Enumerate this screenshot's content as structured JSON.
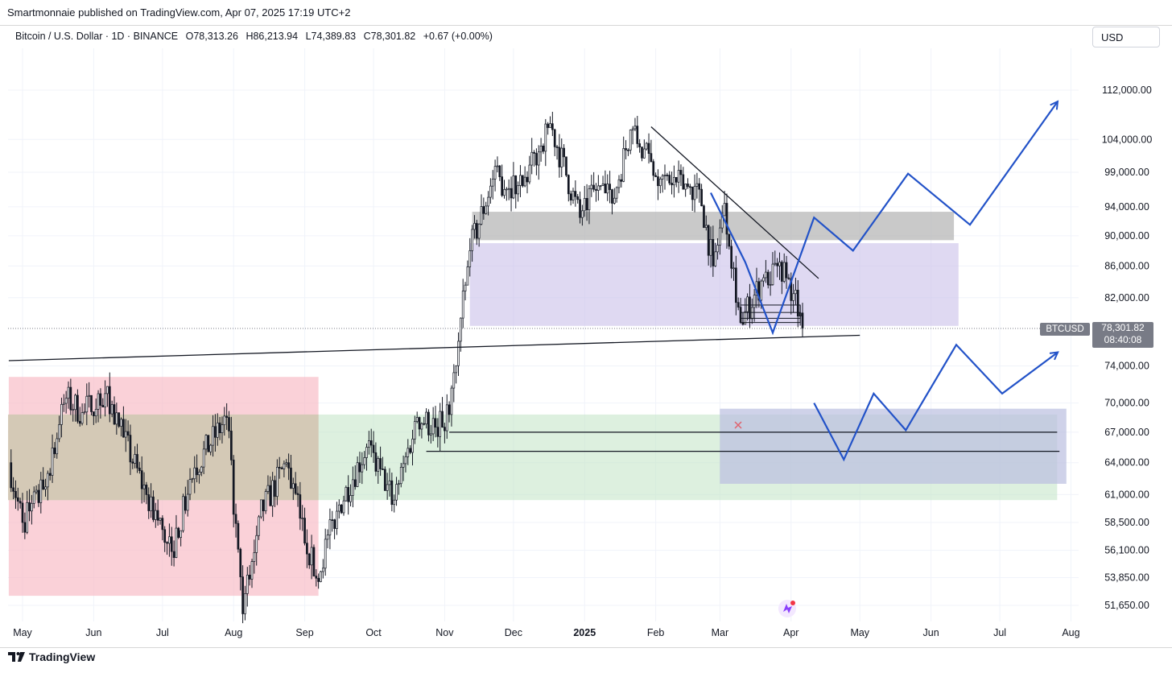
{
  "header": {
    "published": "Smartmonnaie published on TradingView.com, Apr 07, 2025 17:19 UTC+2",
    "title": "Bitcoin / U.S. Dollar · 1D · BINANCE",
    "open": "O78,313.26",
    "high": "H86,213.94",
    "low": "L74,389.83",
    "close": "C78,301.82",
    "change": "+0.67 (+0.00%)",
    "currency": "USD"
  },
  "price_label": {
    "symbol": "BTCUSD",
    "price": "78,301.82",
    "countdown": "08:40:08"
  },
  "footer": {
    "brand": "TradingView"
  },
  "colors": {
    "candle": "#131722",
    "projection": "#2252c8",
    "zone_gray": "#b2b2b2",
    "zone_purple": "#c9bfea",
    "zone_red": "#f8b9c3",
    "zone_green": "#c7e6c9",
    "zone_tan": "#d3c6b2",
    "zone_slate": "#aebfd6"
  },
  "chart_data": {
    "type": "candlestick",
    "scale": "log",
    "y_ticks": [
      112000,
      104000,
      99000,
      94000,
      90000,
      86000,
      82000,
      74000,
      70000,
      67000,
      64000,
      61000,
      58500,
      56100,
      53850,
      51650
    ],
    "y_tick_labels": [
      "112,000.00",
      "104,000.00",
      "99,000.00",
      "94,000.00",
      "90,000.00",
      "86,000.00",
      "82,000.00",
      "74,000.00",
      "70,000.00",
      "67,000.00",
      "64,000.00",
      "61,000.00",
      "58,500.00",
      "56,100.00",
      "53,850.00",
      "51,650.00"
    ],
    "x_labels": [
      "May",
      "Jun",
      "Jul",
      "Aug",
      "Sep",
      "Oct",
      "Nov",
      "Dec",
      "2025",
      "Feb",
      "Mar",
      "Apr",
      "May",
      "Jun",
      "Jul",
      "Aug"
    ],
    "x_label_dates": [
      "2024-05-01",
      "2024-06-01",
      "2024-07-01",
      "2024-08-01",
      "2024-09-01",
      "2024-10-01",
      "2024-11-01",
      "2024-12-01",
      "2025-01-01",
      "2025-02-01",
      "2025-03-01",
      "2025-04-01",
      "2025-05-01",
      "2025-06-01",
      "2025-07-01",
      "2025-08-01"
    ],
    "close_path": [
      [
        "2024-04-25",
        64000
      ],
      [
        "2024-05-01",
        58500
      ],
      [
        "2024-05-10",
        61500
      ],
      [
        "2024-05-20",
        70500
      ],
      [
        "2024-05-27",
        69000
      ],
      [
        "2024-06-06",
        71000
      ],
      [
        "2024-06-14",
        66500
      ],
      [
        "2024-06-24",
        61000
      ],
      [
        "2024-07-05",
        56000
      ],
      [
        "2024-07-15",
        63500
      ],
      [
        "2024-07-29",
        68500
      ],
      [
        "2024-08-05",
        51000
      ],
      [
        "2024-08-12",
        59000
      ],
      [
        "2024-08-24",
        64000
      ],
      [
        "2024-09-06",
        53800
      ],
      [
        "2024-09-15",
        59500
      ],
      [
        "2024-09-28",
        65500
      ],
      [
        "2024-10-10",
        60500
      ],
      [
        "2024-10-20",
        68500
      ],
      [
        "2024-10-28",
        67500
      ],
      [
        "2024-11-03",
        68800
      ],
      [
        "2024-11-12",
        88000
      ],
      [
        "2024-11-22",
        98000
      ],
      [
        "2024-12-05",
        97000
      ],
      [
        "2024-12-17",
        106500
      ],
      [
        "2024-12-30",
        92500
      ],
      [
        "2025-01-07",
        97000
      ],
      [
        "2025-01-13",
        94500
      ],
      [
        "2025-01-21",
        105500
      ],
      [
        "2025-02-03",
        98000
      ],
      [
        "2025-02-20",
        96500
      ],
      [
        "2025-02-26",
        86000
      ],
      [
        "2025-03-03",
        94500
      ],
      [
        "2025-03-10",
        79000
      ],
      [
        "2025-03-20",
        84500
      ],
      [
        "2025-03-27",
        86500
      ],
      [
        "2025-04-02",
        82500
      ],
      [
        "2025-04-06",
        78301.82
      ]
    ],
    "zones": [
      {
        "name": "red-demand-zone",
        "from": "2024-04-25",
        "to": "2024-09-07",
        "high": 72800,
        "low": 52400
      },
      {
        "name": "green-zone",
        "from": "2024-04-25",
        "to": "2025-07-26",
        "high": 68800,
        "low": 60500
      },
      {
        "name": "slate-zone",
        "from": "2025-03-01",
        "to": "2025-07-30",
        "high": 69400,
        "low": 62000
      },
      {
        "name": "purple-zone",
        "from": "2024-11-12",
        "to": "2025-06-13",
        "high": 89000,
        "low": 78600
      },
      {
        "name": "gray-zone",
        "from": "2024-11-13",
        "to": "2025-06-11",
        "high": 93300,
        "low": 89400
      }
    ],
    "trendlines": [
      {
        "name": "support-trendline",
        "from": [
          "2024-04-25",
          74600
        ],
        "to": [
          "2025-05-01",
          77500
        ]
      },
      {
        "name": "descending-resistance",
        "from": [
          "2025-01-30",
          106000
        ],
        "to": [
          "2025-04-13",
          84400
        ]
      },
      {
        "name": "support-line-67k",
        "from": [
          "2024-11-03",
          67000
        ],
        "to": [
          "2025-07-26",
          67000
        ]
      },
      {
        "name": "support-line-65k",
        "from": [
          "2024-10-24",
          65100
        ],
        "to": [
          "2025-07-27",
          65100
        ]
      }
    ],
    "projections": [
      {
        "name": "bullish-projection",
        "points": [
          [
            "2025-02-25",
            96000
          ],
          [
            "2025-03-12",
            86500
          ],
          [
            "2025-03-24",
            77800
          ],
          [
            "2025-04-11",
            92500
          ],
          [
            "2025-04-28",
            88000
          ],
          [
            "2025-05-22",
            98800
          ],
          [
            "2025-06-18",
            91500
          ],
          [
            "2025-07-26",
            110000
          ]
        ]
      },
      {
        "name": "bearish-projection",
        "points": [
          [
            "2025-04-11",
            70000
          ],
          [
            "2025-04-24",
            64300
          ],
          [
            "2025-05-07",
            71000
          ],
          [
            "2025-05-21",
            67200
          ],
          [
            "2025-06-12",
            76400
          ],
          [
            "2025-07-02",
            71000
          ],
          [
            "2025-07-26",
            75500
          ]
        ]
      }
    ],
    "last_price": 78301.82
  }
}
